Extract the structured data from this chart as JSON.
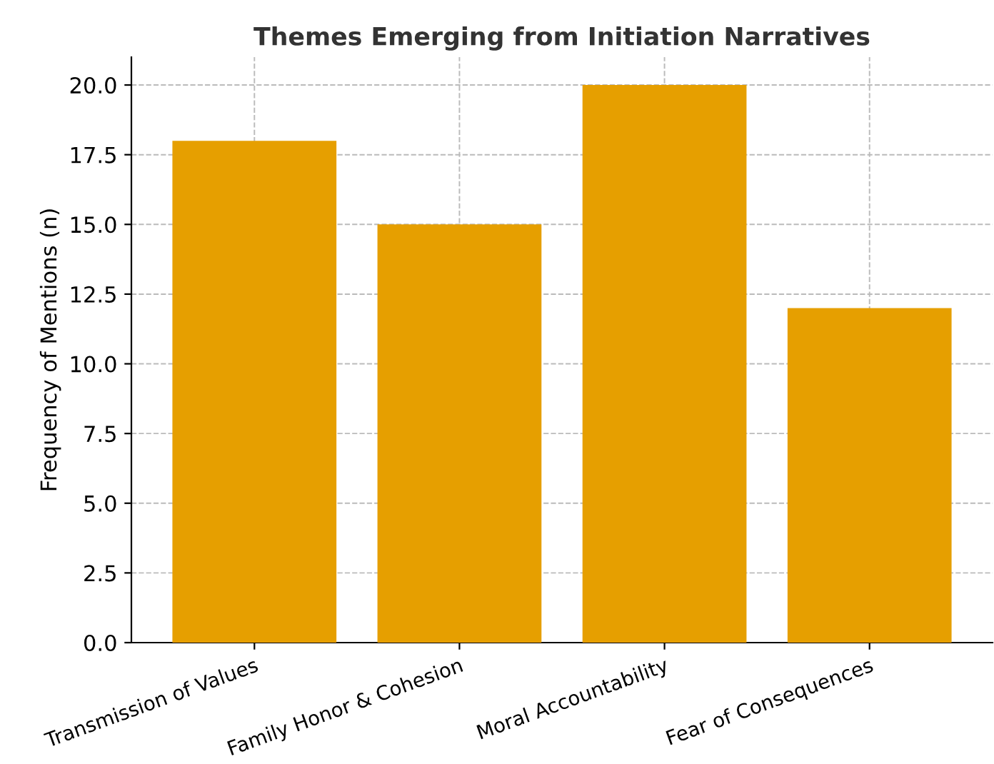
{
  "chart_data": {
    "type": "bar",
    "title": "Themes Emerging from Initiation Narratives",
    "ylabel": "Frequency of Mentions (n)",
    "categories": [
      "Transmission of Values",
      "Family Honor & Cohesion",
      "Moral Accountability",
      "Fear of Consequences"
    ],
    "values": [
      18,
      15,
      20,
      12
    ],
    "color": "#e69f00",
    "ylim": [
      0,
      21
    ],
    "yticks": [
      {
        "value": 0,
        "label": "0.0"
      },
      {
        "value": 2.5,
        "label": "2.5"
      },
      {
        "value": 5,
        "label": "5.0"
      },
      {
        "value": 7.5,
        "label": "7.5"
      },
      {
        "value": 10,
        "label": "10.0"
      },
      {
        "value": 12.5,
        "label": "12.5"
      },
      {
        "value": 15,
        "label": "15.0"
      },
      {
        "value": 17.5,
        "label": "17.5"
      },
      {
        "value": 20,
        "label": "20.0"
      }
    ],
    "grid": true
  }
}
